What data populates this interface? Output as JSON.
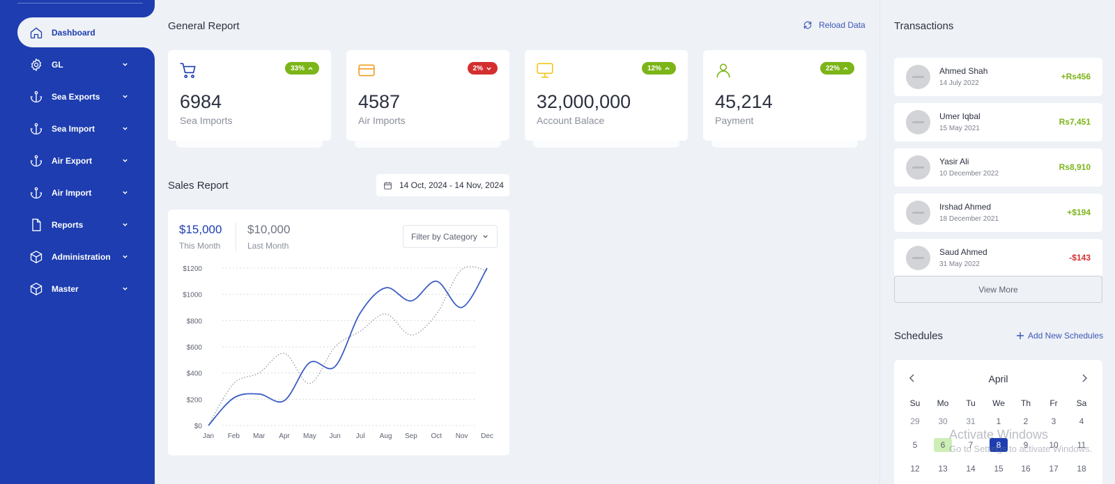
{
  "sidebar": {
    "items": [
      {
        "label": "Dashboard",
        "icon": "home-icon"
      },
      {
        "label": "GL",
        "icon": "gear-icon"
      },
      {
        "label": "Sea Exports",
        "icon": "anchor-icon"
      },
      {
        "label": "Sea Import",
        "icon": "anchor-icon"
      },
      {
        "label": "Air Export",
        "icon": "anchor-icon"
      },
      {
        "label": "Air Import",
        "icon": "anchor-icon"
      },
      {
        "label": "Reports",
        "icon": "file-icon"
      },
      {
        "label": "Administration",
        "icon": "box-icon"
      },
      {
        "label": "Master",
        "icon": "box-icon"
      }
    ]
  },
  "general_report": {
    "title": "General Report",
    "reload_label": "Reload Data",
    "cards": [
      {
        "value": "6984",
        "label": "Sea Imports",
        "badge": "33%",
        "trend": "up",
        "icon": "cart-icon",
        "icon_color": "#1d3db0",
        "badge_color": "#7cb518"
      },
      {
        "value": "4587",
        "label": "Air Imports",
        "badge": "2%",
        "trend": "down",
        "icon": "credit-card-icon",
        "icon_color": "#f29c1f",
        "badge_color": "#d32f2f"
      },
      {
        "value": "32,000,000",
        "label": "Account Balace",
        "badge": "12%",
        "trend": "up",
        "icon": "monitor-icon",
        "icon_color": "#f5c518",
        "badge_color": "#7cb518"
      },
      {
        "value": "45,214",
        "label": "Payment",
        "badge": "22%",
        "trend": "up",
        "icon": "user-icon",
        "icon_color": "#7cb518",
        "badge_color": "#7cb518"
      }
    ]
  },
  "sales_report": {
    "title": "Sales Report",
    "date_range": "14 Oct, 2024 - 14 Nov, 2024",
    "this_month_value": "$15,000",
    "this_month_label": "This Month",
    "last_month_value": "$10,000",
    "last_month_label": "Last Month",
    "filter_label": "Filter by Category"
  },
  "chart_data": {
    "type": "line",
    "x": [
      "Jan",
      "Feb",
      "Mar",
      "Apr",
      "May",
      "Jun",
      "Jul",
      "Aug",
      "Sep",
      "Oct",
      "Nov",
      "Dec"
    ],
    "ylim": [
      0,
      1200
    ],
    "yticks": [
      0,
      200,
      400,
      600,
      800,
      1000,
      1200
    ],
    "ytick_labels": [
      "$0",
      "$200",
      "$400",
      "$600",
      "$800",
      "$1000",
      "$1200"
    ],
    "grid": true,
    "series": [
      {
        "style": "solid",
        "color": "#3b5cc4",
        "values": [
          0,
          210,
          240,
          190,
          480,
          450,
          860,
          1050,
          950,
          1100,
          900,
          1200
        ]
      },
      {
        "style": "dotted",
        "color": "#9a9fab",
        "values": [
          0,
          320,
          400,
          550,
          320,
          600,
          720,
          850,
          690,
          850,
          1190,
          1180
        ]
      }
    ]
  },
  "transactions": {
    "title": "Transactions",
    "items": [
      {
        "name": "Ahmed Shah",
        "date": "14 July 2022",
        "amount": "+Rs456",
        "color": "#7cb518"
      },
      {
        "name": "Umer Iqbal",
        "date": "15 May 2021",
        "amount": "Rs7,451",
        "color": "#7cb518"
      },
      {
        "name": "Yasir Ali",
        "date": "10 December 2022",
        "amount": "Rs8,910",
        "color": "#7cb518"
      },
      {
        "name": "Irshad Ahmed",
        "date": "18 December 2021",
        "amount": "+$194",
        "color": "#7cb518"
      },
      {
        "name": "Saud Ahmed",
        "date": "31 May 2022",
        "amount": "-$143",
        "color": "#d32f2f"
      }
    ],
    "view_more_label": "View More"
  },
  "schedules": {
    "title": "Schedules",
    "add_label": "Add New Schedules",
    "month": "April",
    "weekdays": [
      "Su",
      "Mo",
      "Tu",
      "We",
      "Th",
      "Fr",
      "Sa"
    ],
    "weeks": [
      [
        "29",
        "30",
        "31",
        "1",
        "2",
        "3",
        "4"
      ],
      [
        "5",
        "6",
        "7",
        "8",
        "9",
        "10",
        "11"
      ],
      [
        "12",
        "13",
        "14",
        "15",
        "16",
        "17",
        "18"
      ]
    ],
    "highlight_day": "6",
    "selected_day": "8"
  },
  "watermark": {
    "line1": "Activate Windows",
    "line2": "Go to Settings to activate Windows."
  }
}
